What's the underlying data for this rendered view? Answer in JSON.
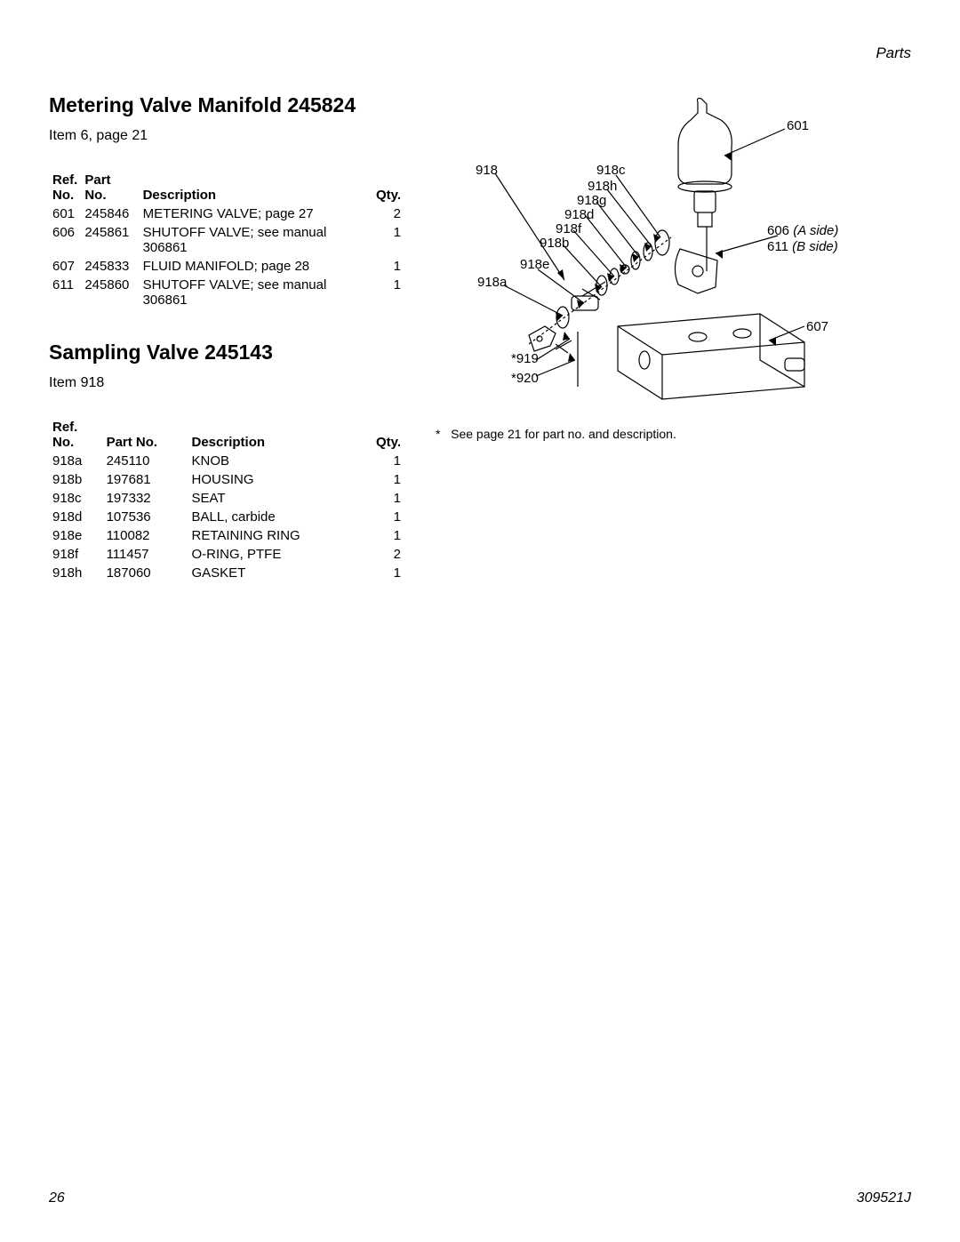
{
  "page": {
    "header_right": "Parts",
    "page_number": "26",
    "doc_number": "309521J"
  },
  "section1": {
    "title": "Metering Valve Manifold 245824",
    "subtitle": "Item 6, page 21",
    "headers": {
      "ref": "Ref.\nNo.",
      "partno": "Part No.",
      "desc": "Description",
      "qty": "Qty."
    },
    "rows": [
      {
        "ref": "601",
        "partno": "245846",
        "desc": "METERING VALVE; page 27",
        "qty": "2"
      },
      {
        "ref": "606",
        "partno": "245861",
        "desc": "SHUTOFF VALVE; see manual 306861",
        "qty": "1"
      },
      {
        "ref": "607",
        "partno": "245833",
        "desc": "FLUID MANIFOLD; page 28",
        "qty": "1"
      },
      {
        "ref": "611",
        "partno": "245860",
        "desc": "SHUTOFF VALVE; see manual 306861",
        "qty": "1"
      }
    ]
  },
  "section2": {
    "title": "Sampling Valve 245143",
    "subtitle": "Item 918",
    "headers": {
      "ref": "Ref.\nNo.",
      "partno": "Part No.",
      "desc": "Description",
      "qty": "Qty."
    },
    "rows": [
      {
        "ref": "918a",
        "partno": "245110",
        "desc": "KNOB",
        "qty": "1"
      },
      {
        "ref": "918b",
        "partno": "197681",
        "desc": "HOUSING",
        "qty": "1"
      },
      {
        "ref": "918c",
        "partno": "197332",
        "desc": "SEAT",
        "qty": "1"
      },
      {
        "ref": "918d",
        "partno": "107536",
        "desc": "BALL, carbide",
        "qty": "1"
      },
      {
        "ref": "918e",
        "partno": "110082",
        "desc": "RETAINING RING",
        "qty": "1"
      },
      {
        "ref": "918f",
        "partno": "111457",
        "desc": "O-RING, PTFE",
        "qty": "2"
      },
      {
        "ref": "918h",
        "partno": "187060",
        "desc": "GASKET",
        "qty": "1"
      }
    ]
  },
  "diagram": {
    "footnote": "See page 21 for part no. and description.",
    "callouts": {
      "c918": "918",
      "c918c": "918c",
      "c918h": "918h",
      "c918g": "918g",
      "c918d": "918d",
      "c918f": "918f",
      "c918b": "918b",
      "c918e": "918e",
      "c918a": "918a",
      "c919": "*919",
      "c920": "*920",
      "c601": "601",
      "c606_line1": "606 ",
      "c606_line1_ital": "(A side)",
      "c611_line2": "611 ",
      "c611_line2_ital": "(B side)",
      "c607": "607"
    }
  }
}
